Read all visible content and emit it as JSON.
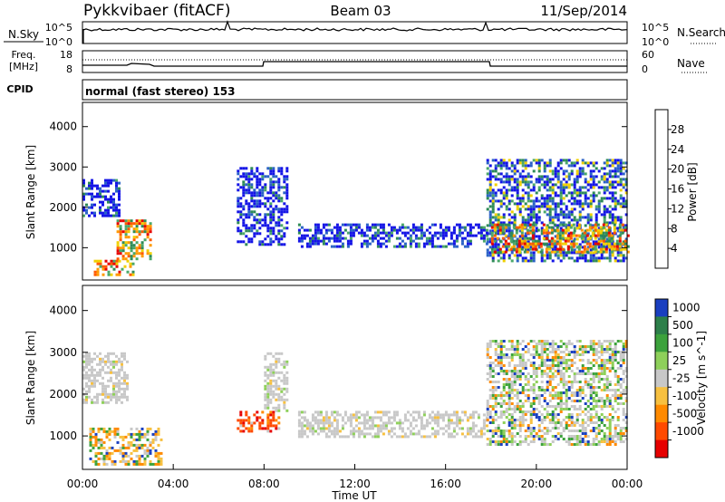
{
  "header": {
    "station": "Pykkvibaer (fitACF)",
    "beam": "Beam 03",
    "date": "11/Sep/2014"
  },
  "panels": {
    "nsky": {
      "label": "N.Sky",
      "tick_top": "10^5",
      "tick_bottom": "10^0",
      "right_label": "N.Search",
      "right_tick_top": "10^5",
      "right_tick_bottom": "10^0"
    },
    "freq": {
      "label_line1": "Freq.",
      "label_line2": "[MHz]",
      "tick_top": "18",
      "tick_bottom": "8",
      "right_label": "Nave",
      "right_tick_top": "60",
      "right_tick_bottom": "0"
    },
    "cpid": {
      "label": "CPID",
      "value": "normal (fast stereo) 153"
    }
  },
  "chart_data": [
    {
      "type": "heatmap",
      "title": "",
      "ylabel": "Slant Range [km]",
      "ylim": [
        200,
        4600
      ],
      "yticks": [
        "1000",
        "2000",
        "3000",
        "4000"
      ],
      "colorbar": {
        "label": "Power [dB]",
        "ticks": [
          "4",
          "8",
          "12",
          "16",
          "20",
          "24",
          "28"
        ],
        "colors": [
          "#1414e6",
          "#2a62c6",
          "#2e8b57",
          "#4aa86a",
          "#f0d000",
          "#ff9a00",
          "#ff5a00",
          "#e60000"
        ]
      },
      "regions": [
        {
          "t": [
            0.0,
            1.6
          ],
          "r": [
            1800,
            2700
          ],
          "level": "low"
        },
        {
          "t": [
            0.5,
            2.2
          ],
          "r": [
            300,
            700
          ],
          "level": "high"
        },
        {
          "t": [
            1.5,
            3.0
          ],
          "r": [
            700,
            1700
          ],
          "level": "high"
        },
        {
          "t": [
            6.8,
            9.0
          ],
          "r": [
            1100,
            3000
          ],
          "level": "low"
        },
        {
          "t": [
            9.5,
            17.8
          ],
          "r": [
            1000,
            1600
          ],
          "level": "low"
        },
        {
          "t": [
            17.8,
            24.0
          ],
          "r": [
            700,
            3200
          ],
          "level": "mid"
        },
        {
          "t": [
            18.0,
            24.0
          ],
          "r": [
            900,
            1600
          ],
          "level": "high"
        }
      ]
    },
    {
      "type": "heatmap",
      "title": "",
      "xlabel": "Time UT",
      "ylabel": "Slant Range [km]",
      "ylim": [
        200,
        4600
      ],
      "xticks": [
        "00:00",
        "04:00",
        "08:00",
        "12:00",
        "16:00",
        "20:00",
        "00:00"
      ],
      "yticks": [
        "1000",
        "2000",
        "3000",
        "4000"
      ],
      "colorbar": {
        "label": "Velocity [m s^-1]",
        "ticks": [
          "1000",
          "500",
          "100",
          "25",
          "-25",
          "-100",
          "-500",
          "-1000"
        ],
        "colors": [
          "#1a3fc0",
          "#2d7f4a",
          "#3ca23c",
          "#8ed05a",
          "#c8c8c8",
          "#f7c040",
          "#ff8a00",
          "#ff4a00",
          "#e60000"
        ]
      },
      "regions": [
        {
          "t": [
            0.0,
            2.0
          ],
          "r": [
            1800,
            3000
          ],
          "level": "near-zero"
        },
        {
          "t": [
            0.3,
            3.5
          ],
          "r": [
            300,
            1200
          ],
          "level": "negative"
        },
        {
          "t": [
            6.8,
            8.6
          ],
          "r": [
            1100,
            1600
          ],
          "level": "strong-negative"
        },
        {
          "t": [
            8.0,
            9.0
          ],
          "r": [
            1600,
            3000
          ],
          "level": "near-zero"
        },
        {
          "t": [
            9.5,
            17.8
          ],
          "r": [
            1000,
            1600
          ],
          "level": "near-zero"
        },
        {
          "t": [
            17.8,
            24.0
          ],
          "r": [
            800,
            3300
          ],
          "level": "mixed"
        }
      ]
    }
  ]
}
